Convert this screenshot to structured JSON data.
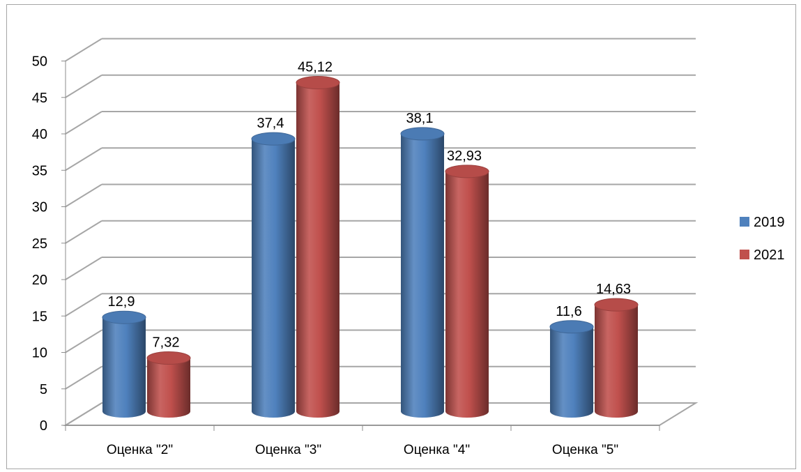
{
  "chart_data": {
    "type": "bar",
    "style": "3d-cylinder",
    "categories": [
      "Оценка \"2\"",
      "Оценка \"3\"",
      "Оценка \"4\"",
      "Оценка \"5\""
    ],
    "series": [
      {
        "name": "2019",
        "values": [
          12.9,
          37.4,
          38.1,
          11.6
        ],
        "labels": [
          "12,9",
          "37,4",
          "38,1",
          "11,6"
        ],
        "color": "#4F81BD"
      },
      {
        "name": "2021",
        "values": [
          7.32,
          45.12,
          32.93,
          14.63
        ],
        "labels": [
          "7,32",
          "45,12",
          "32,93",
          "14,63"
        ],
        "color": "#C0504D"
      }
    ],
    "ylim": [
      0,
      50
    ],
    "yticks": [
      0,
      5,
      10,
      15,
      20,
      25,
      30,
      35,
      40,
      45,
      50
    ],
    "grid": true,
    "legend": "right"
  }
}
